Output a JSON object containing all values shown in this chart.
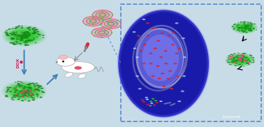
{
  "bg_color": "#c8dce8",
  "fig_width": 3.78,
  "fig_height": 1.83,
  "dpi": 100,
  "green_color": "#22cc22",
  "dark_green": "#116611",
  "pink_color": "#ee4488",
  "red_dot_color": "#dd2222",
  "cyan_dot_color": "#aaddee",
  "white_color": "#ffffff",
  "sphere_green": "#33cc33",
  "sphere_dark": "#115511",
  "cell_color": "#1a1aaa",
  "nucleus_color": "#7777ee",
  "box_edge_color": "#5588cc",
  "lysosome_label": "Lysosome",
  "dox_label": "DOX"
}
